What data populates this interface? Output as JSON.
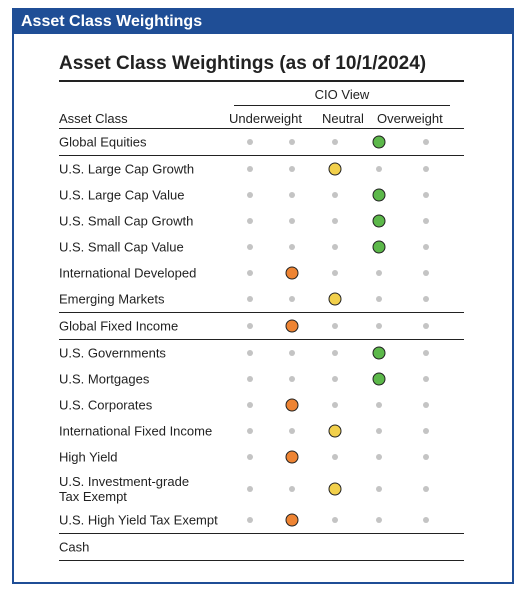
{
  "banner": "Asset Class Weightings",
  "title": "Asset Class Weightings (as of 10/1/2024)",
  "header": {
    "cio_view": "CIO View",
    "asset_class": "Asset Class",
    "underweight": "Underweight",
    "neutral": "Neutral",
    "overweight": "Overweight"
  },
  "colors": {
    "green": "#5cb84a",
    "yellow": "#f2d04b",
    "orange": "#ee8433",
    "gray": "#c4c4c4"
  },
  "rows": [
    {
      "label": "Global Equities",
      "level": 4,
      "color": "green",
      "sep": true
    },
    {
      "label": "U.S. Large Cap Growth",
      "level": 3,
      "color": "yellow"
    },
    {
      "label": "U.S. Large Cap Value",
      "level": 4,
      "color": "green"
    },
    {
      "label": "U.S. Small Cap Growth",
      "level": 4,
      "color": "green"
    },
    {
      "label": "U.S. Small Cap Value",
      "level": 4,
      "color": "green"
    },
    {
      "label": "International Developed",
      "level": 2,
      "color": "orange"
    },
    {
      "label": "Emerging Markets",
      "level": 3,
      "color": "yellow",
      "sep": true
    },
    {
      "label": "Global Fixed Income",
      "level": 2,
      "color": "orange",
      "sep": true
    },
    {
      "label": "U.S. Governments",
      "level": 4,
      "color": "green"
    },
    {
      "label": "U.S. Mortgages",
      "level": 4,
      "color": "green"
    },
    {
      "label": "U.S. Corporates",
      "level": 2,
      "color": "orange"
    },
    {
      "label": "International Fixed Income",
      "level": 3,
      "color": "yellow"
    },
    {
      "label": "High Yield",
      "level": 2,
      "color": "orange"
    },
    {
      "label": "U.S. Investment-grade\nTax Exempt",
      "level": 3,
      "color": "yellow",
      "tall": true
    },
    {
      "label": "U.S. High Yield Tax Exempt",
      "level": 2,
      "color": "orange",
      "sep": true
    },
    {
      "label": "Cash",
      "level": 0,
      "color": "",
      "sep": true,
      "empty": true
    }
  ]
}
